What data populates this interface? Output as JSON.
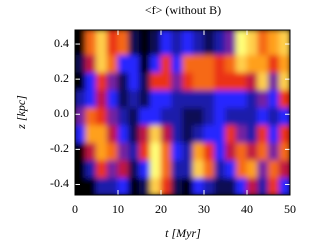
{
  "chart_data": {
    "type": "heatmap",
    "title": "<f> (without B)",
    "xlabel": "t [Myr]",
    "ylabel": "z [kpc]",
    "xlim": [
      0,
      50
    ],
    "ylim": [
      -0.46,
      0.48
    ],
    "xticks": [
      0,
      10,
      20,
      30,
      40,
      50
    ],
    "yticks": [
      -0.4,
      -0.2,
      {
        "value": 0,
        "label": "0.0"
      },
      0.2,
      0.4
    ],
    "xbins": [
      0,
      2.5,
      5,
      7.5,
      10,
      12.5,
      15,
      17.5,
      20,
      22.5,
      25,
      27.5,
      30,
      32.5,
      35,
      37.5,
      40,
      42.5,
      45,
      47.5,
      50
    ],
    "ybins": [
      -0.46,
      -0.36,
      -0.26,
      -0.16,
      -0.06,
      0.04,
      0.14,
      0.24,
      0.34,
      0.48
    ],
    "z": [
      [
        0,
        0,
        0.2,
        0.2,
        0.3,
        0,
        0.1,
        0.9,
        0.6,
        0.1,
        0,
        0.3,
        0.2,
        0.1,
        0.1,
        0.3,
        0.5,
        0.2,
        0.6,
        0.3
      ],
      [
        0,
        0.2,
        0.6,
        0.4,
        0.5,
        0.1,
        0.3,
        1,
        0.7,
        0.2,
        0.2,
        0.9,
        0.7,
        0.2,
        0.3,
        0.7,
        0.8,
        0.4,
        0.7,
        0.5
      ],
      [
        0,
        0.5,
        0.8,
        0.7,
        0.4,
        0.2,
        0.6,
        1,
        0.7,
        0.3,
        0.2,
        0.8,
        0.6,
        0.3,
        0.5,
        0.7,
        0.5,
        0.7,
        0.4,
        0.7
      ],
      [
        0.3,
        0.8,
        0.8,
        0.5,
        0.3,
        0.1,
        0.5,
        0.9,
        0.5,
        0.2,
        0.1,
        0.2,
        0.3,
        0.3,
        0.6,
        0.4,
        0.2,
        0.6,
        0.3,
        0.6
      ],
      [
        0.4,
        0.7,
        0.6,
        0.4,
        0.2,
        0.1,
        0.3,
        0.3,
        0.2,
        0.2,
        0.1,
        0.1,
        0.2,
        0.3,
        0.2,
        0.2,
        0.2,
        0.3,
        0.2,
        0.3
      ],
      [
        0.2,
        0.3,
        0.5,
        0.3,
        0.1,
        0.2,
        0.1,
        0.3,
        0.3,
        0.2,
        0.2,
        0.2,
        0.2,
        0.3,
        0.3,
        0.3,
        0.2,
        0.4,
        0.3,
        0.6
      ],
      [
        0,
        0.3,
        0.6,
        0.4,
        0.1,
        0.3,
        0.1,
        0.6,
        0.6,
        0.4,
        0.6,
        0.7,
        0.7,
        0.6,
        0.6,
        0.6,
        0.5,
        0.9,
        0.4,
        0.9
      ],
      [
        0.1,
        0.5,
        0.9,
        0.7,
        0.3,
        0.3,
        0,
        0.3,
        0.6,
        0.3,
        0.7,
        0.7,
        0.7,
        0.6,
        0.7,
        0.9,
        0.8,
        0.8,
        0.6,
        0.8
      ],
      [
        0,
        0.7,
        0.9,
        0.6,
        0.7,
        0.1,
        0,
        0.1,
        0.3,
        0.2,
        0.3,
        0.2,
        0.1,
        0.2,
        0.4,
        1,
        0.9,
        0.7,
        0.8,
        0.9
      ]
    ]
  }
}
